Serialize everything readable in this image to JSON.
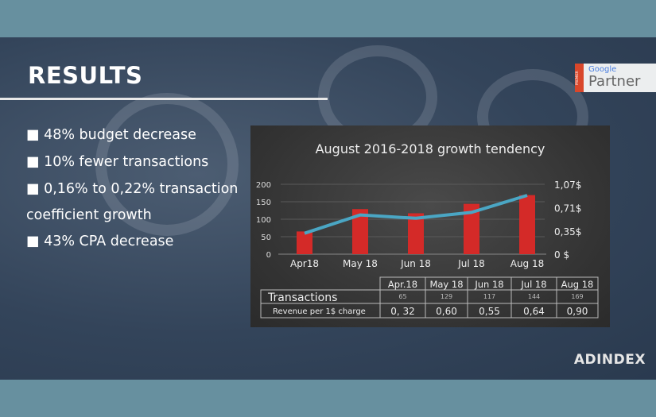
{
  "slide": {
    "title": "RESULTS",
    "bullets": [
      "■ 48% budget decrease",
      "■ 10% fewer transactions",
      "■ 0,16% to 0,22% transaction",
      "coefficient growth",
      "■ 43% CPA decrease"
    ],
    "badge": {
      "premier": "PREMIER",
      "google": "Google",
      "partner": "Partner"
    },
    "brand": "ADINDEX"
  },
  "chart_data": {
    "type": "bar+line",
    "title": "August 2016-2018 growth tendency",
    "categories": [
      "Apr18",
      "May 18",
      "Jun 18",
      "Jul 18",
      "Aug 18"
    ],
    "left_axis": {
      "ticks": [
        "0",
        "50",
        "100",
        "150",
        "200"
      ],
      "range": [
        0,
        200
      ]
    },
    "right_axis": {
      "ticks": [
        "0  $",
        "0,35$",
        "0,71$",
        "1,07$"
      ],
      "range": [
        0,
        1.07
      ]
    },
    "series": [
      {
        "name": "Transactions",
        "type": "bar",
        "axis": "left",
        "values": [
          65,
          129,
          117,
          144,
          169
        ],
        "color": "#d42a28"
      },
      {
        "name": "Revenue per 1$ charge",
        "type": "line",
        "axis": "right",
        "values": [
          0.32,
          0.6,
          0.55,
          0.64,
          0.9
        ],
        "color": "#4aa6c4"
      }
    ],
    "grid": true,
    "table": {
      "headers": [
        "Apr.18",
        "May 18",
        "Jun 18",
        "Jul 18",
        "Aug 18"
      ],
      "rows": [
        {
          "label": "Transactions",
          "cells": [
            "65",
            "129",
            "117",
            "144",
            "169"
          ]
        },
        {
          "label": "Revenue per 1$ charge",
          "cells": [
            "0, 32",
            "0,60",
            "0,55",
            "0,64",
            "0,90"
          ]
        }
      ]
    }
  }
}
